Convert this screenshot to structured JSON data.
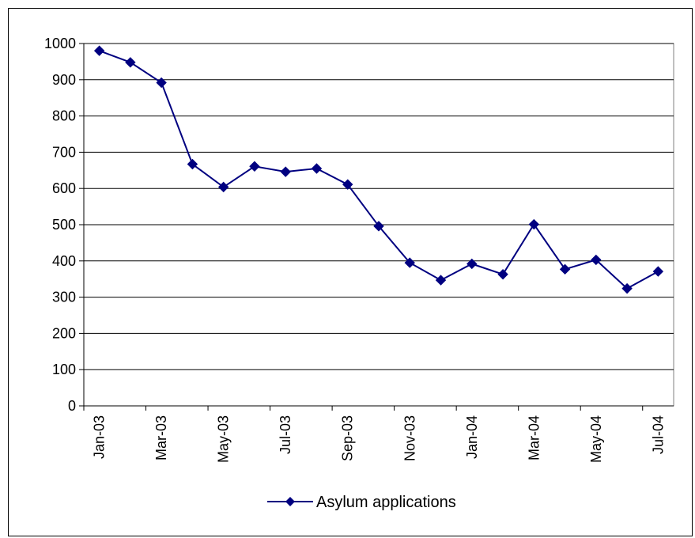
{
  "chart_data": {
    "type": "line",
    "x": [
      "Jan-03",
      "Feb-03",
      "Mar-03",
      "Apr-03",
      "May-03",
      "Jun-03",
      "Jul-03",
      "Aug-03",
      "Sep-03",
      "Oct-03",
      "Nov-03",
      "Dec-03",
      "Jan-04",
      "Feb-04",
      "Mar-04",
      "Apr-04",
      "May-04",
      "Jun-04",
      "Jul-04"
    ],
    "x_tick_labels": [
      "Jan-03",
      "Mar-03",
      "May-03",
      "Jul-03",
      "Sep-03",
      "Nov-03",
      "Jan-04",
      "Mar-04",
      "May-04",
      "Jul-04"
    ],
    "series": [
      {
        "name": "Asylum applications",
        "values": [
          980,
          948,
          892,
          667,
          604,
          661,
          646,
          655,
          611,
          496,
          395,
          347,
          392,
          363,
          501,
          377,
          403,
          324,
          371
        ]
      }
    ],
    "ylim": [
      0,
      1000
    ],
    "y_ticks": [
      "0",
      "100",
      "200",
      "300",
      "400",
      "500",
      "600",
      "700",
      "800",
      "900",
      "1000"
    ],
    "grid": "horizontal",
    "legend_position": "bottom",
    "colors": {
      "series": "#000080",
      "grid": "#000000",
      "axis": "#000000"
    }
  }
}
